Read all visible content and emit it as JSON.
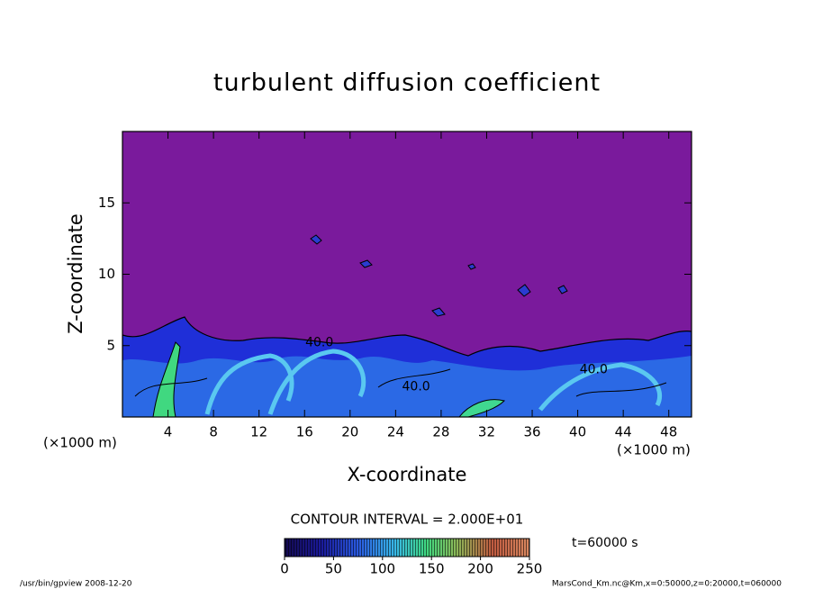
{
  "chart_data": {
    "type": "contour",
    "title": "turbulent diffusion coefficient",
    "x_label": "X-coordinate",
    "y_label": "Z-coordinate",
    "x_unit": "(×1000 m)",
    "y_unit": "(×1000 m)",
    "xlim": [
      0,
      50
    ],
    "ylim": [
      0,
      20
    ],
    "xticks": [
      4,
      8,
      12,
      16,
      20,
      24,
      28,
      32,
      36,
      40,
      44,
      48
    ],
    "yticks": [
      5,
      10,
      15
    ],
    "contour_labels": [
      {
        "value": 40,
        "label": "40.0",
        "x": 17.3,
        "y": 5.2
      },
      {
        "value": 40,
        "label": "40.0",
        "x": 25.8,
        "y": 2.1
      },
      {
        "value": 40,
        "label": "40.0",
        "x": 41.4,
        "y": 3.3
      }
    ],
    "contour_interval_label": "CONTOUR INTERVAL = 2.000E+01",
    "colorbar": {
      "lim": [
        0,
        250
      ],
      "ticks": [
        0,
        50,
        100,
        150,
        200,
        250
      ]
    },
    "time_label": "t=60000 s",
    "footer_left": "/usr/bin/gpview  2008-12-20",
    "footer_right": "MarsCond_Km.nc@Km,x=0:50000,z=0:20000,t=060000"
  }
}
